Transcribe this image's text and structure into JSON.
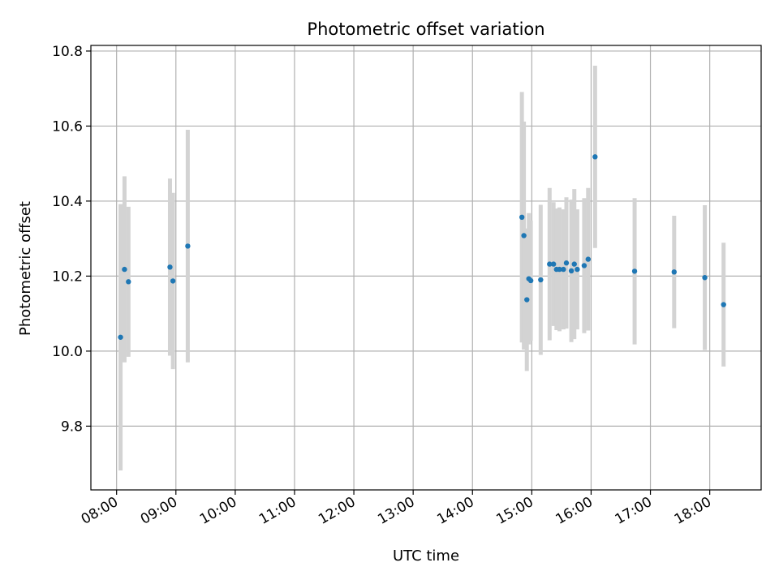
{
  "chart_data": {
    "type": "scatter",
    "title": "Photometric offset variation",
    "xlabel": "UTC time",
    "ylabel": "Photometric offset",
    "x_axis_type": "time",
    "xlim": [
      "07:34",
      "18:52"
    ],
    "ylim": [
      9.63,
      10.815
    ],
    "x_ticks": [
      "08:00",
      "09:00",
      "10:00",
      "11:00",
      "12:00",
      "13:00",
      "14:00",
      "15:00",
      "16:00",
      "17:00",
      "18:00"
    ],
    "y_ticks": [
      9.8,
      10.0,
      10.2,
      10.4,
      10.6,
      10.8
    ],
    "grid": true,
    "marker_color": "#1f77b4",
    "errorbar_color": "#d3d3d3",
    "points": [
      {
        "x": "08:04",
        "y": 10.037,
        "err": 0.355
      },
      {
        "x": "08:08",
        "y": 10.218,
        "err": 0.248
      },
      {
        "x": "08:12",
        "y": 10.185,
        "err": 0.2
      },
      {
        "x": "08:54",
        "y": 10.224,
        "err": 0.236
      },
      {
        "x": "08:57",
        "y": 10.187,
        "err": 0.235
      },
      {
        "x": "09:12",
        "y": 10.28,
        "err": 0.31
      },
      {
        "x": "14:50",
        "y": 10.357,
        "err": 0.334
      },
      {
        "x": "14:52",
        "y": 10.308,
        "err": 0.304
      },
      {
        "x": "14:55",
        "y": 10.137,
        "err": 0.19
      },
      {
        "x": "14:57",
        "y": 10.193,
        "err": 0.175
      },
      {
        "x": "14:59",
        "y": 10.188,
        "err": 0.16
      },
      {
        "x": "15:09",
        "y": 10.19,
        "err": 0.2
      },
      {
        "x": "15:18",
        "y": 10.232,
        "err": 0.203
      },
      {
        "x": "15:22",
        "y": 10.232,
        "err": 0.165
      },
      {
        "x": "15:25",
        "y": 10.218,
        "err": 0.162
      },
      {
        "x": "15:28",
        "y": 10.218,
        "err": 0.165
      },
      {
        "x": "15:32",
        "y": 10.218,
        "err": 0.16
      },
      {
        "x": "15:35",
        "y": 10.235,
        "err": 0.175
      },
      {
        "x": "15:40",
        "y": 10.214,
        "err": 0.19
      },
      {
        "x": "15:43",
        "y": 10.232,
        "err": 0.2
      },
      {
        "x": "15:46",
        "y": 10.218,
        "err": 0.16
      },
      {
        "x": "15:53",
        "y": 10.228,
        "err": 0.18
      },
      {
        "x": "15:57",
        "y": 10.245,
        "err": 0.19
      },
      {
        "x": "16:04",
        "y": 10.518,
        "err": 0.243
      },
      {
        "x": "16:44",
        "y": 10.213,
        "err": 0.195
      },
      {
        "x": "17:24",
        "y": 10.211,
        "err": 0.15
      },
      {
        "x": "17:55",
        "y": 10.196,
        "err": 0.193
      },
      {
        "x": "18:14",
        "y": 10.124,
        "err": 0.165
      }
    ]
  }
}
